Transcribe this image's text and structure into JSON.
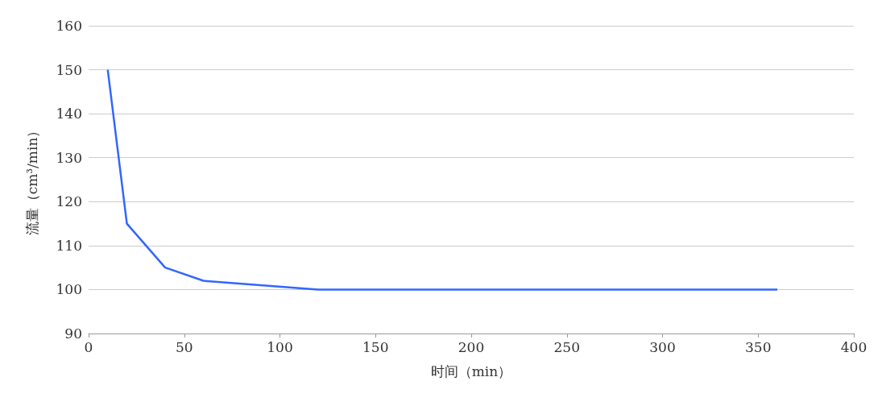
{
  "chart_data": {
    "type": "line",
    "xlabel": "时间（min）",
    "ylabel": "流量（cm³/min）",
    "x": [
      10,
      20,
      40,
      60,
      120,
      360
    ],
    "series": [
      {
        "color": "#3366ff",
        "values": [
          150,
          115,
          105,
          102,
          100,
          100
        ]
      }
    ],
    "xlim": [
      0,
      400
    ],
    "xticks": [
      0,
      50,
      100,
      150,
      200,
      250,
      300,
      350,
      400
    ],
    "ylim": [
      90,
      160
    ],
    "yticks": [
      90,
      100,
      110,
      120,
      130,
      140,
      150,
      160
    ],
    "grid": "y",
    "marker": "none",
    "line_style": "solid"
  }
}
